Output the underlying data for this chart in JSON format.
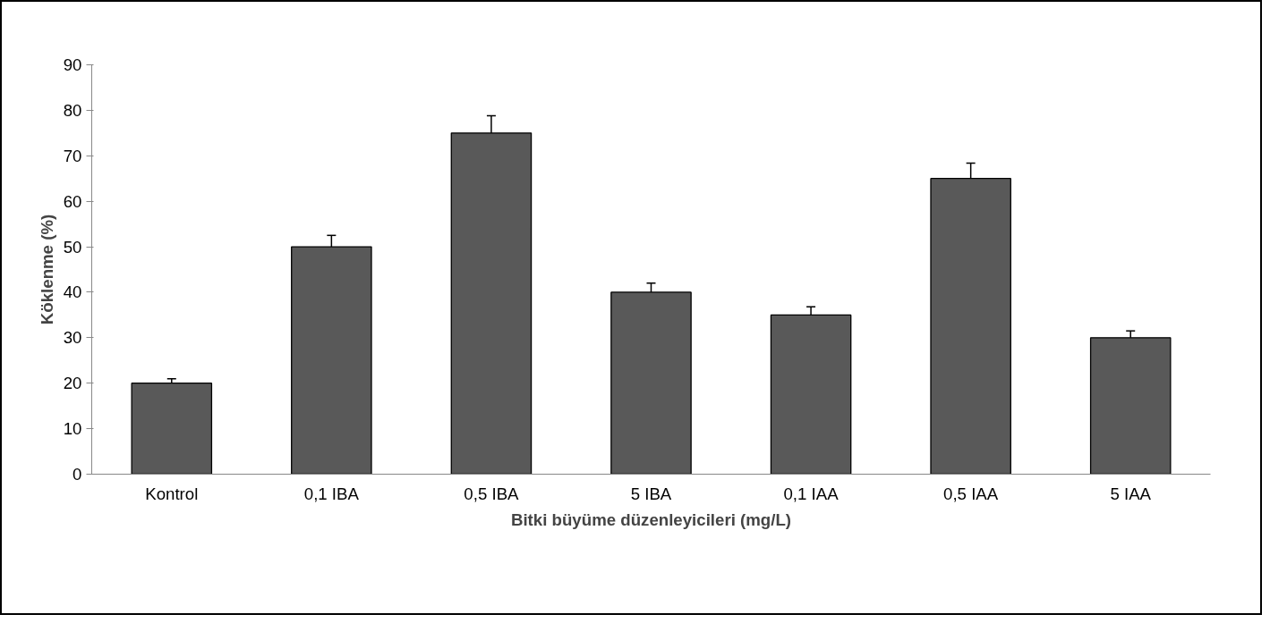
{
  "chart_data": {
    "type": "bar",
    "xlabel": "Bitki büyüme düzenleyicileri (mg/L)",
    "ylabel": "Köklenme (%)",
    "categories": [
      "Kontrol",
      "0,1 IBA",
      "0,5 IBA",
      "5 IBA",
      "0,1 IAA",
      "0,5 IAA",
      "5 IAA"
    ],
    "values": [
      20,
      50,
      75,
      40,
      35,
      65,
      30
    ],
    "errors": [
      1,
      2.5,
      3.8,
      2,
      1.8,
      3.4,
      1.5
    ],
    "color": "#595959",
    "ylim": [
      0,
      90
    ],
    "yticks": [
      0,
      10,
      20,
      30,
      40,
      50,
      60,
      70,
      80,
      90
    ],
    "grid": false
  }
}
